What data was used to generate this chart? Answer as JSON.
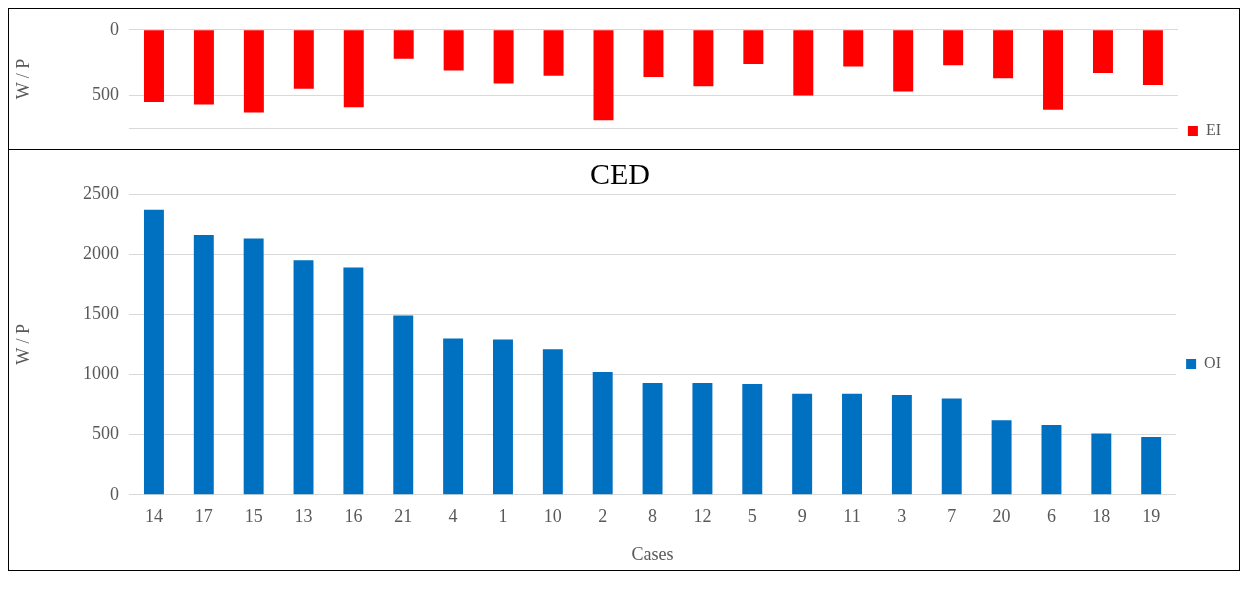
{
  "chart_data": [
    {
      "type": "bar",
      "ylabel": "W / P",
      "categories": [
        "14",
        "17",
        "15",
        "13",
        "16",
        "21",
        "4",
        "1",
        "10",
        "2",
        "8",
        "12",
        "5",
        "9",
        "11",
        "3",
        "7",
        "20",
        "6",
        "18",
        "19"
      ],
      "series": [
        {
          "name": "EI",
          "color": "#ff0000",
          "values": [
            550,
            570,
            630,
            450,
            590,
            220,
            310,
            410,
            350,
            690,
            360,
            430,
            260,
            500,
            280,
            470,
            270,
            370,
            610,
            330,
            420
          ]
        }
      ],
      "ylim": [
        750,
        0
      ],
      "yticks": [
        0,
        500
      ],
      "grid": "y",
      "legend": "bottom right",
      "tick_labels": "y"
    },
    {
      "type": "bar",
      "title": "CED",
      "xlabel": "Cases",
      "ylabel": "W / P",
      "categories": [
        "14",
        "17",
        "15",
        "13",
        "16",
        "21",
        "4",
        "1",
        "10",
        "2",
        "8",
        "12",
        "5",
        "9",
        "11",
        "3",
        "7",
        "20",
        "6",
        "18",
        "19"
      ],
      "series": [
        {
          "name": "OI",
          "color": "#0070c0",
          "values": [
            2370,
            2160,
            2130,
            1950,
            1890,
            1490,
            1300,
            1290,
            1210,
            1020,
            930,
            930,
            920,
            840,
            840,
            830,
            800,
            620,
            580,
            510,
            480
          ]
        }
      ],
      "ylim": [
        0,
        2500
      ],
      "yticks": [
        0,
        500,
        1000,
        1500,
        2000,
        2500
      ],
      "grid": "y",
      "legend": "right"
    }
  ]
}
